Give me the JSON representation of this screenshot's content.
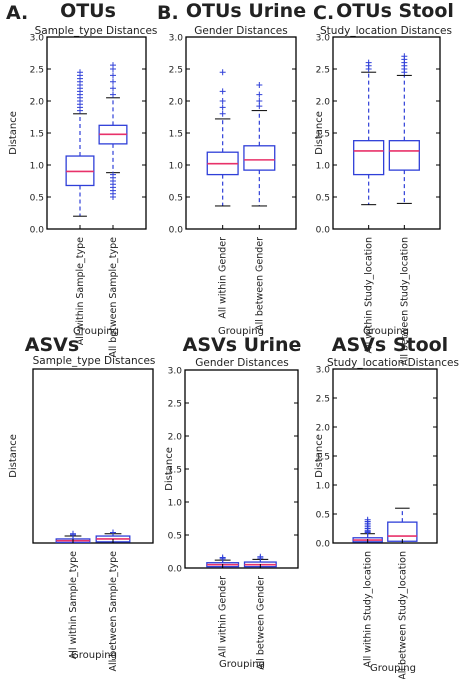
{
  "panel_labels": {
    "a": "A.",
    "b": "B.",
    "c": "C."
  },
  "colors": {
    "box": "#2f3fd8",
    "median": "#e8326a",
    "flier": "#2f3fd8",
    "frame": "#000000"
  },
  "chart_data": [
    {
      "type": "box",
      "heading": "OTUs",
      "title": "Sample_type Distances",
      "xlabel": "Grouping",
      "ylabel": "Distance",
      "ylim": [
        0,
        3.0
      ],
      "yticks": [
        "0.0",
        "0.5",
        "1.0",
        "1.5",
        "2.0",
        "2.5",
        "3.0"
      ],
      "categories": [
        "All within Sample_type",
        "All between Sample_type"
      ],
      "boxes": [
        {
          "whislo": 0.2,
          "q1": 0.68,
          "med": 0.9,
          "q3": 1.14,
          "whishi": 1.8,
          "fliers": [
            1.85,
            1.9,
            1.95,
            2.0,
            2.05,
            2.1,
            2.15,
            2.2,
            2.25,
            2.3,
            2.35,
            2.4,
            2.45
          ]
        },
        {
          "whislo": 0.88,
          "q1": 1.33,
          "med": 1.48,
          "q3": 1.62,
          "whishi": 2.05,
          "fliers": [
            0.5,
            0.55,
            0.6,
            0.65,
            0.7,
            0.75,
            0.8,
            0.85,
            2.1,
            2.2,
            2.3,
            2.4,
            2.5,
            2.56
          ]
        }
      ]
    },
    {
      "type": "box",
      "heading": "OTUs Urine",
      "title": "Gender Distances",
      "xlabel": "Grouping",
      "ylabel": "",
      "ylim": [
        0,
        3.0
      ],
      "yticks": [
        "0.0",
        "0.5",
        "1.0",
        "1.5",
        "2.0",
        "2.5",
        "3.0"
      ],
      "categories": [
        "All within Gender",
        "All between Gender"
      ],
      "boxes": [
        {
          "whislo": 0.36,
          "q1": 0.85,
          "med": 1.02,
          "q3": 1.2,
          "whishi": 1.72,
          "fliers": [
            1.8,
            1.9,
            2.0,
            2.15,
            2.45
          ]
        },
        {
          "whislo": 0.36,
          "q1": 0.92,
          "med": 1.08,
          "q3": 1.3,
          "whishi": 1.85,
          "fliers": [
            1.92,
            2.0,
            2.1,
            2.25
          ]
        }
      ]
    },
    {
      "type": "box",
      "heading": "OTUs Stool",
      "title": "Study_location Distances",
      "xlabel": "Grouping",
      "ylabel": "Distance",
      "ylim": [
        0,
        3.0
      ],
      "yticks": [
        "0.0",
        "0.5",
        "1.0",
        "1.5",
        "2.0",
        "2.5",
        "3.0"
      ],
      "categories": [
        "All within Study_location",
        "All between Study_location"
      ],
      "boxes": [
        {
          "whislo": 0.38,
          "q1": 0.85,
          "med": 1.22,
          "q3": 1.38,
          "whishi": 2.45,
          "fliers": [
            2.5,
            2.55,
            2.6
          ]
        },
        {
          "whislo": 0.4,
          "q1": 0.92,
          "med": 1.22,
          "q3": 1.38,
          "whishi": 2.4,
          "fliers": [
            2.45,
            2.5,
            2.55,
            2.6,
            2.65,
            2.7
          ]
        }
      ]
    },
    {
      "type": "box",
      "heading": "ASVs",
      "title": "Sample_type Distances",
      "xlabel": "Grouping",
      "ylabel": "Distance",
      "ylim": [
        0,
        3.0
      ],
      "yticks": [],
      "categories": [
        "All within Sample_type",
        "All between Sample_type"
      ],
      "boxes": [
        {
          "whislo": 0.0,
          "q1": 0.01,
          "med": 0.04,
          "q3": 0.07,
          "whishi": 0.12,
          "fliers": [
            0.14,
            0.16
          ]
        },
        {
          "whislo": 0.0,
          "q1": 0.02,
          "med": 0.07,
          "q3": 0.12,
          "whishi": 0.16,
          "fliers": [
            0.18
          ]
        }
      ]
    },
    {
      "type": "box",
      "heading": "ASVs Urine",
      "title": "Gender Distances",
      "xlabel": "Grouping",
      "ylabel": "Distance",
      "ylim": [
        0,
        3.0
      ],
      "yticks": [
        "0.0",
        "0.5",
        "1.0",
        "1.5",
        "2.0",
        "2.5",
        "3.0"
      ],
      "categories": [
        "All within Gender",
        "All between Gender"
      ],
      "boxes": [
        {
          "whislo": 0.0,
          "q1": 0.02,
          "med": 0.05,
          "q3": 0.08,
          "whishi": 0.12,
          "fliers": [
            0.14,
            0.16
          ]
        },
        {
          "whislo": 0.0,
          "q1": 0.02,
          "med": 0.05,
          "q3": 0.09,
          "whishi": 0.13,
          "fliers": [
            0.15,
            0.17
          ]
        }
      ]
    },
    {
      "type": "box",
      "heading": "ASVs Stool",
      "title": "Study_location Distances",
      "xlabel": "Grouping",
      "ylabel": "Distance",
      "ylim": [
        0,
        3.0
      ],
      "yticks": [
        "0.0",
        "0.5",
        "1.0",
        "1.5",
        "2.0",
        "2.5",
        "3.0"
      ],
      "categories": [
        "All within Study_location",
        "All between Study_location"
      ],
      "boxes": [
        {
          "whislo": 0.0,
          "q1": 0.02,
          "med": 0.05,
          "q3": 0.09,
          "whishi": 0.16,
          "fliers": [
            0.18,
            0.2,
            0.22,
            0.25,
            0.28,
            0.31,
            0.34,
            0.37,
            0.4
          ]
        },
        {
          "whislo": 0.0,
          "q1": 0.03,
          "med": 0.12,
          "q3": 0.36,
          "whishi": 0.6,
          "fliers": []
        }
      ]
    }
  ]
}
